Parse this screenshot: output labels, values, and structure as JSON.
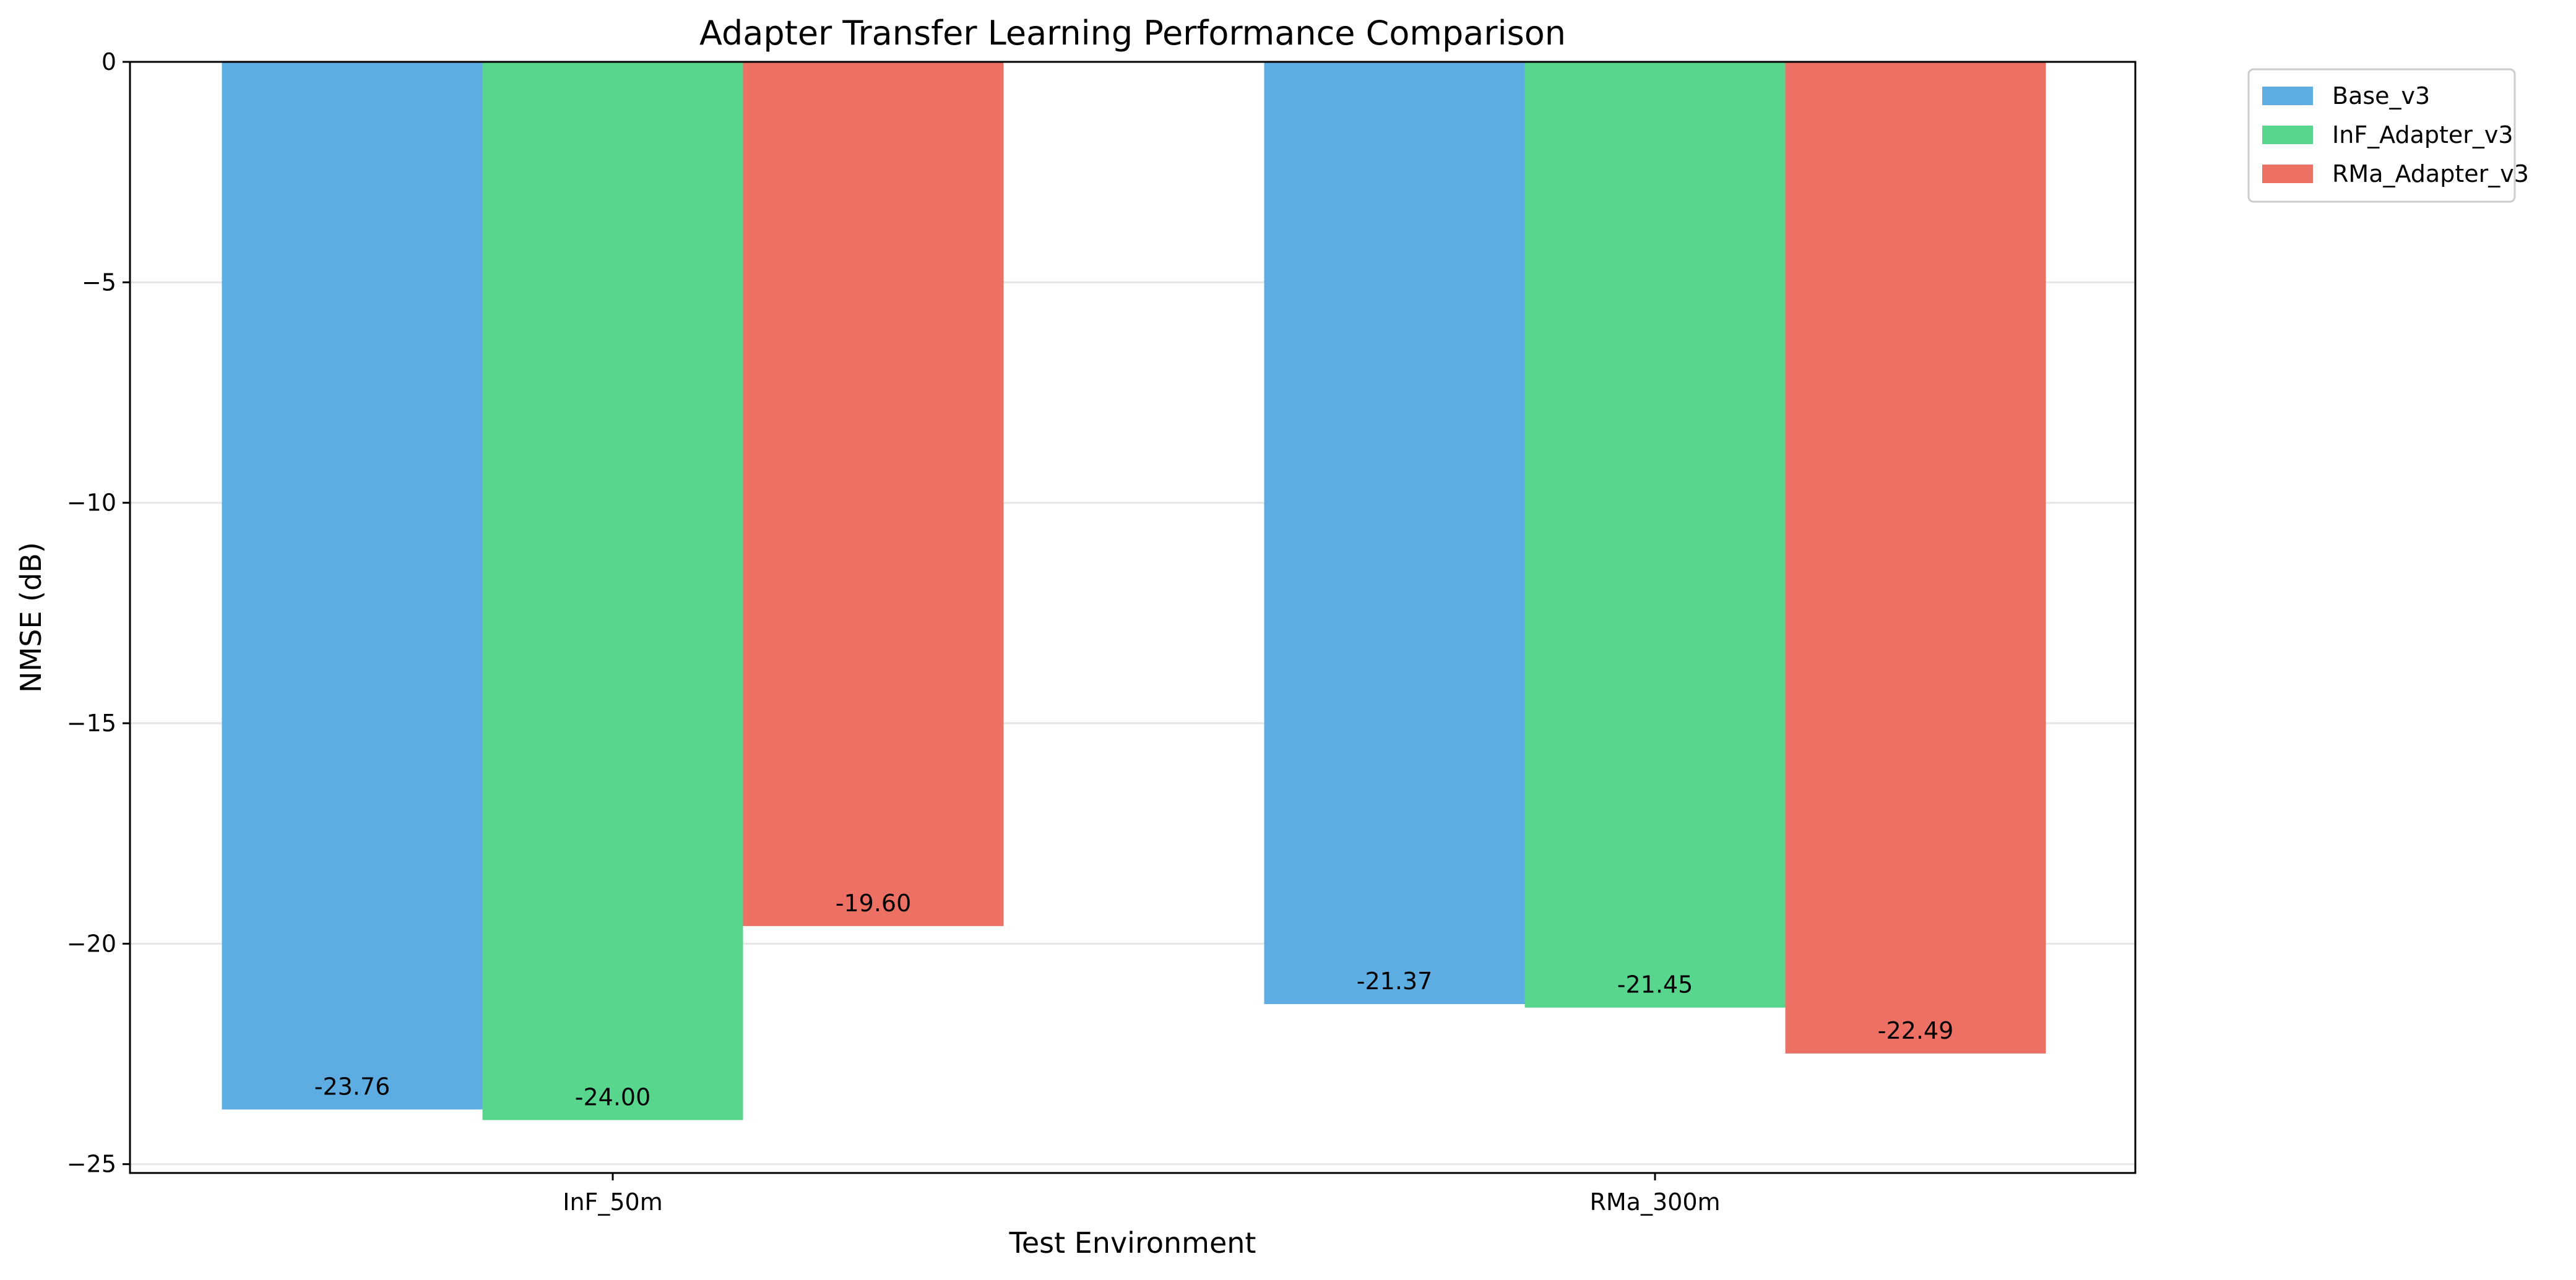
{
  "chart_data": {
    "type": "bar",
    "title": "Adapter Transfer Learning Performance Comparison",
    "xlabel": "Test Environment",
    "ylabel": "NMSE (dB)",
    "categories": [
      "InF_50m",
      "RMa_300m"
    ],
    "series": [
      {
        "name": "Base_v3",
        "color": "#5DADE2",
        "values": [
          -23.76,
          -21.37
        ],
        "labels": [
          "-23.76",
          "-21.37"
        ]
      },
      {
        "name": "InF_Adapter_v3",
        "color": "#58D68D",
        "values": [
          -24.0,
          -21.45
        ],
        "labels": [
          "-24.00",
          "-21.45"
        ]
      },
      {
        "name": "RMa_Adapter_v3",
        "color": "#EC7063",
        "values": [
          -19.6,
          -22.49
        ],
        "labels": [
          "-19.60",
          "-22.49"
        ]
      }
    ],
    "ylim": [
      -25.2,
      0
    ],
    "yticks": [
      0,
      -5,
      -10,
      -15,
      -20,
      -25
    ],
    "ytick_labels": [
      "0",
      "−5",
      "−10",
      "−15",
      "−20",
      "−25"
    ],
    "grid": true,
    "legend_position": "upper right, outside plot"
  }
}
